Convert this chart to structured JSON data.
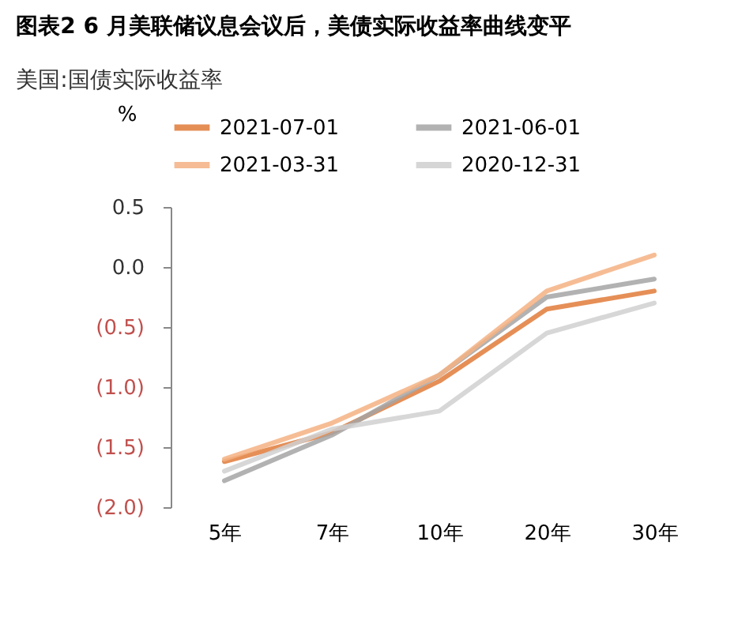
{
  "chart_data": {
    "type": "line",
    "title": "图表2    6 月美联储议息会议后，美债实际收益率曲线变平",
    "subtitle": "美国:国债实际收益率",
    "ylabel": "%",
    "categories": [
      "5年",
      "7年",
      "10年",
      "20年",
      "30年"
    ],
    "series": [
      {
        "name": "2021-07-01",
        "color": "#e07b39",
        "values": [
          -1.62,
          -1.38,
          -0.95,
          -0.35,
          -0.2
        ]
      },
      {
        "name": "2021-06-01",
        "color": "#a5a5a5",
        "values": [
          -1.78,
          -1.4,
          -0.9,
          -0.25,
          -0.1
        ]
      },
      {
        "name": "2021-03-31",
        "color": "#f4b183",
        "values": [
          -1.6,
          -1.3,
          -0.9,
          -0.2,
          0.1
        ]
      },
      {
        "name": "2020-12-31",
        "color": "#d0d0d0",
        "values": [
          -1.7,
          -1.35,
          -1.2,
          -0.55,
          -0.3
        ]
      }
    ],
    "ylim": [
      -2.0,
      0.5
    ],
    "yticks": [
      {
        "value": 0.5,
        "label": "0.5"
      },
      {
        "value": 0.0,
        "label": "0.0"
      },
      {
        "value": -0.5,
        "label": "(0.5)"
      },
      {
        "value": -1.0,
        "label": "(1.0)"
      },
      {
        "value": -1.5,
        "label": "(1.5)"
      },
      {
        "value": -2.0,
        "label": "(2.0)"
      }
    ],
    "legend": "top",
    "grid": false,
    "marker": "none",
    "line_style": "solid"
  }
}
